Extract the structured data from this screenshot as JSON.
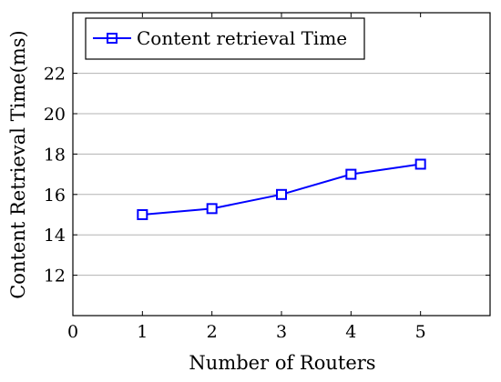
{
  "chart_data": {
    "type": "line",
    "x": [
      1,
      2,
      3,
      4,
      5
    ],
    "series": [
      {
        "name": "Content retrieval Time",
        "values": [
          15.0,
          15.3,
          16.0,
          17.0,
          17.5
        ],
        "color": "#0000ff",
        "marker": "square"
      }
    ],
    "xlabel": "Number of Routers",
    "ylabel": "Content Retrieval Time(ms)",
    "xlim": [
      0,
      6
    ],
    "ylim": [
      10,
      25
    ],
    "xticks": [
      0,
      1,
      2,
      3,
      4,
      5
    ],
    "yticks": [
      12,
      14,
      16,
      18,
      20,
      22
    ],
    "grid": "horizontal",
    "legend_position": "top-left"
  }
}
